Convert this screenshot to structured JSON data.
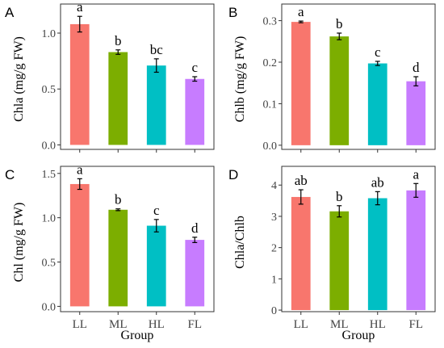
{
  "figure": {
    "shared_xlabel": "Group"
  },
  "chart_data": [
    {
      "panel": "A",
      "type": "bar",
      "categories": [
        "LL",
        "ML",
        "HL",
        "FL"
      ],
      "values": [
        1.08,
        0.83,
        0.71,
        0.59
      ],
      "errors": [
        0.07,
        0.02,
        0.06,
        0.02
      ],
      "labels": [
        "a",
        "b",
        "bc",
        "c"
      ],
      "colors": [
        "#F8766D",
        "#7CAE00",
        "#00BFC4",
        "#C77CFF"
      ],
      "ylabel": "Chla (mg/g FW)",
      "xlabel": "",
      "ylim": [
        -0.04,
        1.26
      ],
      "yticks": [
        0.0,
        0.5,
        1.0
      ],
      "yticklabels": [
        "0.0 -",
        "0.5 -",
        "1.0 -"
      ],
      "show_xticklabels": false
    },
    {
      "panel": "B",
      "type": "bar",
      "categories": [
        "LL",
        "ML",
        "HL",
        "FL"
      ],
      "values": [
        0.297,
        0.262,
        0.197,
        0.154
      ],
      "errors": [
        0.002,
        0.008,
        0.005,
        0.011
      ],
      "labels": [
        "a",
        "b",
        "c",
        "d"
      ],
      "colors": [
        "#F8766D",
        "#7CAE00",
        "#00BFC4",
        "#C77CFF"
      ],
      "ylabel": "Chlb (mg/g FW)",
      "xlabel": "",
      "ylim": [
        -0.01,
        0.34
      ],
      "yticks": [
        0.0,
        0.1,
        0.2,
        0.3
      ],
      "yticklabels": [
        "0.0 -",
        "0.1 -",
        "0.2 -",
        "0.3 -"
      ],
      "show_xticklabels": false
    },
    {
      "panel": "C",
      "type": "bar",
      "categories": [
        "LL",
        "ML",
        "HL",
        "FL"
      ],
      "values": [
        1.38,
        1.09,
        0.91,
        0.75
      ],
      "errors": [
        0.06,
        0.01,
        0.07,
        0.03
      ],
      "labels": [
        "a",
        "b",
        "c",
        "d"
      ],
      "colors": [
        "#F8766D",
        "#7CAE00",
        "#00BFC4",
        "#C77CFF"
      ],
      "ylabel": "Chl (mg/g FW)",
      "xlabel": "",
      "ylim": [
        -0.06,
        1.58
      ],
      "yticks": [
        0.0,
        0.5,
        1.0,
        1.5
      ],
      "yticklabels": [
        "0.0 -",
        "0.5 -",
        "1.0 -",
        "1.5 -"
      ],
      "show_xticklabels": true
    },
    {
      "panel": "D",
      "type": "bar",
      "categories": [
        "LL",
        "ML",
        "HL",
        "FL"
      ],
      "values": [
        3.62,
        3.16,
        3.58,
        3.83
      ],
      "errors": [
        0.23,
        0.18,
        0.21,
        0.22
      ],
      "labels": [
        "ab",
        "b",
        "ab",
        "a"
      ],
      "colors": [
        "#F8766D",
        "#7CAE00",
        "#00BFC4",
        "#C77CFF"
      ],
      "ylabel": "Chla/Chlb",
      "xlabel": "",
      "ylim": [
        -0.05,
        4.6
      ],
      "yticks": [
        0,
        1,
        2,
        3,
        4
      ],
      "yticklabels": [
        "0 -",
        "1 -",
        "2 -",
        "3 -",
        "4 -"
      ],
      "show_xticklabels": true
    }
  ]
}
